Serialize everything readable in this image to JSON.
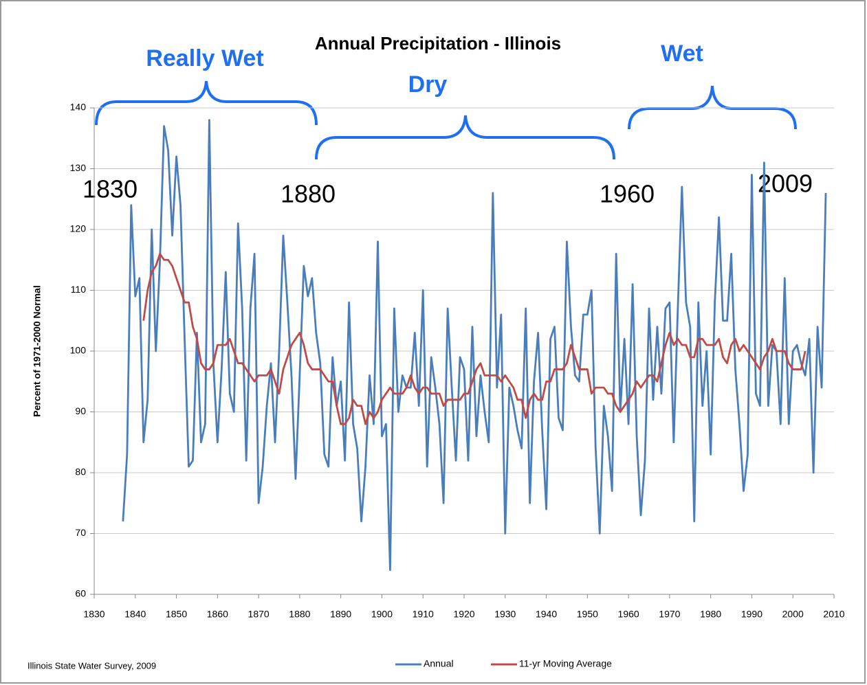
{
  "chart_data": {
    "type": "line",
    "title": "Annual Precipitation - Illinois",
    "y_label": "Percent of 1971-2000 Normal",
    "source": "Illinois State Water Survey, 2009",
    "annotations": [
      "Really Wet",
      "Dry",
      "Wet"
    ],
    "year_labels": [
      "1830",
      "1880",
      "1960",
      "2009"
    ],
    "x": [
      1837,
      1838,
      1839,
      1840,
      1841,
      1842,
      1843,
      1844,
      1845,
      1846,
      1847,
      1848,
      1849,
      1850,
      1851,
      1852,
      1853,
      1854,
      1855,
      1856,
      1857,
      1858,
      1859,
      1860,
      1861,
      1862,
      1863,
      1864,
      1865,
      1866,
      1867,
      1868,
      1869,
      1870,
      1871,
      1872,
      1873,
      1874,
      1875,
      1876,
      1877,
      1878,
      1879,
      1880,
      1881,
      1882,
      1883,
      1884,
      1885,
      1886,
      1887,
      1888,
      1889,
      1890,
      1891,
      1892,
      1893,
      1894,
      1895,
      1896,
      1897,
      1898,
      1899,
      1900,
      1901,
      1902,
      1903,
      1904,
      1905,
      1906,
      1907,
      1908,
      1909,
      1910,
      1911,
      1912,
      1913,
      1914,
      1915,
      1916,
      1917,
      1918,
      1919,
      1920,
      1921,
      1922,
      1923,
      1924,
      1925,
      1926,
      1927,
      1928,
      1929,
      1930,
      1931,
      1932,
      1933,
      1934,
      1935,
      1936,
      1937,
      1938,
      1939,
      1940,
      1941,
      1942,
      1943,
      1944,
      1945,
      1946,
      1947,
      1948,
      1949,
      1950,
      1951,
      1952,
      1953,
      1954,
      1955,
      1956,
      1957,
      1958,
      1959,
      1960,
      1961,
      1962,
      1963,
      1964,
      1965,
      1966,
      1967,
      1968,
      1969,
      1970,
      1971,
      1972,
      1973,
      1974,
      1975,
      1976,
      1977,
      1978,
      1979,
      1980,
      1981,
      1982,
      1983,
      1984,
      1985,
      1986,
      1987,
      1988,
      1989,
      1990,
      1991,
      1992,
      1993,
      1994,
      1995,
      1996,
      1997,
      1998,
      1999,
      2000,
      2001,
      2002,
      2003,
      2004,
      2005,
      2006,
      2007,
      2008
    ],
    "series": [
      {
        "name": "Annual",
        "color": "#4a7ebb",
        "values": [
          72,
          83,
          124,
          109,
          112,
          85,
          92,
          120,
          100,
          115,
          137,
          133,
          119,
          132,
          124,
          102,
          81,
          82,
          103,
          85,
          88,
          138,
          98,
          85,
          97,
          113,
          93,
          90,
          121,
          107,
          82,
          107,
          116,
          75,
          81,
          91,
          98,
          85,
          100,
          119,
          108,
          96,
          79,
          96,
          114,
          109,
          112,
          103,
          98,
          83,
          81,
          99,
          91,
          95,
          82,
          108,
          88,
          84,
          72,
          81,
          96,
          88,
          118,
          86,
          88,
          64,
          107,
          90,
          96,
          94,
          94,
          103,
          91,
          110,
          81,
          99,
          94,
          88,
          75,
          107,
          94,
          82,
          99,
          97,
          82,
          104,
          86,
          96,
          90,
          85,
          126,
          94,
          106,
          70,
          94,
          91,
          87,
          84,
          107,
          75,
          95,
          103,
          87,
          74,
          102,
          104,
          89,
          87,
          118,
          104,
          96,
          95,
          106,
          106,
          110,
          84,
          70,
          91,
          86,
          77,
          116,
          90,
          102,
          88,
          111,
          86,
          73,
          82,
          107,
          92,
          104,
          93,
          107,
          108,
          85,
          107,
          127,
          108,
          104,
          72,
          108,
          91,
          100,
          83,
          108,
          122,
          105,
          105,
          116,
          97,
          88,
          77,
          83,
          129,
          93,
          91,
          131,
          91,
          101,
          100,
          88,
          112,
          88,
          100,
          101,
          98,
          96,
          102,
          80,
          104,
          94,
          126
        ]
      },
      {
        "name": "11-yr Moving Average",
        "color": "#be4b48",
        "values": [
          null,
          null,
          null,
          null,
          null,
          105,
          110,
          113,
          114,
          116,
          115,
          115,
          114,
          112,
          110,
          108,
          108,
          104,
          102,
          98,
          97,
          97,
          98,
          101,
          101,
          101,
          102,
          100,
          98,
          98,
          97,
          96,
          95,
          96,
          96,
          96,
          97,
          95,
          93,
          97,
          99,
          101,
          102,
          103,
          101,
          98,
          97,
          97,
          97,
          96,
          95,
          95,
          91,
          88,
          88,
          89,
          92,
          91,
          91,
          88,
          90,
          89,
          90,
          92,
          93,
          94,
          93,
          93,
          93,
          94,
          96,
          94,
          93,
          94,
          94,
          93,
          93,
          93,
          91,
          92,
          92,
          92,
          92,
          93,
          93,
          95,
          97,
          98,
          96,
          96,
          96,
          96,
          95,
          96,
          95,
          94,
          92,
          92,
          89,
          92,
          93,
          92,
          92,
          95,
          95,
          97,
          97,
          97,
          98,
          101,
          99,
          97,
          97,
          97,
          93,
          94,
          94,
          94,
          93,
          93,
          91,
          90,
          91,
          92,
          93,
          95,
          94,
          95,
          96,
          96,
          95,
          98,
          101,
          103,
          101,
          102,
          101,
          101,
          99,
          99,
          102,
          102,
          101,
          101,
          101,
          102,
          99,
          98,
          101,
          102,
          100,
          101,
          100,
          99,
          98,
          97,
          99,
          100,
          102,
          100,
          100,
          100,
          98,
          97,
          97,
          97,
          100,
          null,
          null,
          null,
          null,
          null
        ]
      }
    ],
    "xlim": [
      1830,
      2010
    ],
    "xticks": [
      1830,
      1840,
      1850,
      1860,
      1870,
      1880,
      1890,
      1900,
      1910,
      1920,
      1930,
      1940,
      1950,
      1960,
      1970,
      1980,
      1990,
      2000,
      2010
    ],
    "ylim": [
      60,
      140
    ],
    "yticks": [
      60,
      70,
      80,
      90,
      100,
      110,
      120,
      130,
      140
    ],
    "grid": true,
    "legend": "bottom"
  }
}
